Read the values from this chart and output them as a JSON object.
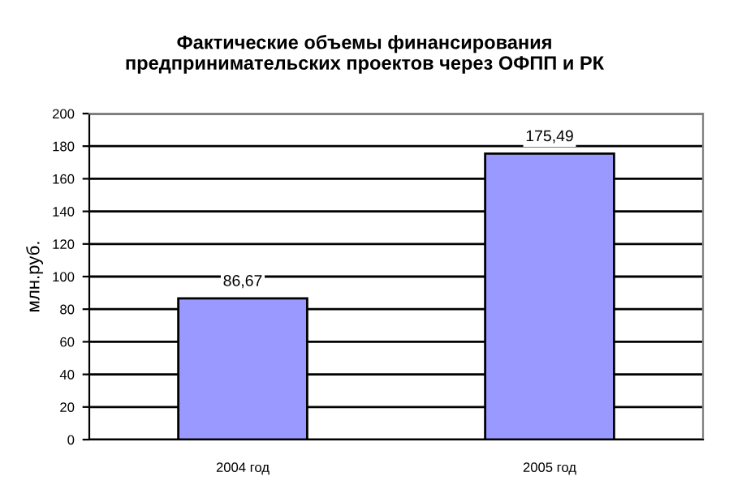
{
  "chart_data": {
    "type": "bar",
    "title": "Фактические объемы финансирования\nпредпринимательских проектов через ОФПП и РК",
    "ylabel": "млн.руб.",
    "categories": [
      "2004 год",
      "2005 год"
    ],
    "values": [
      86.67,
      175.49
    ],
    "value_labels": [
      "86,67",
      "175,49"
    ],
    "color": "#9999ff",
    "ylim": [
      0,
      200
    ],
    "yticks": [
      0,
      20,
      40,
      60,
      80,
      100,
      120,
      140,
      160,
      180,
      200
    ],
    "grid": "y",
    "legend": false
  }
}
